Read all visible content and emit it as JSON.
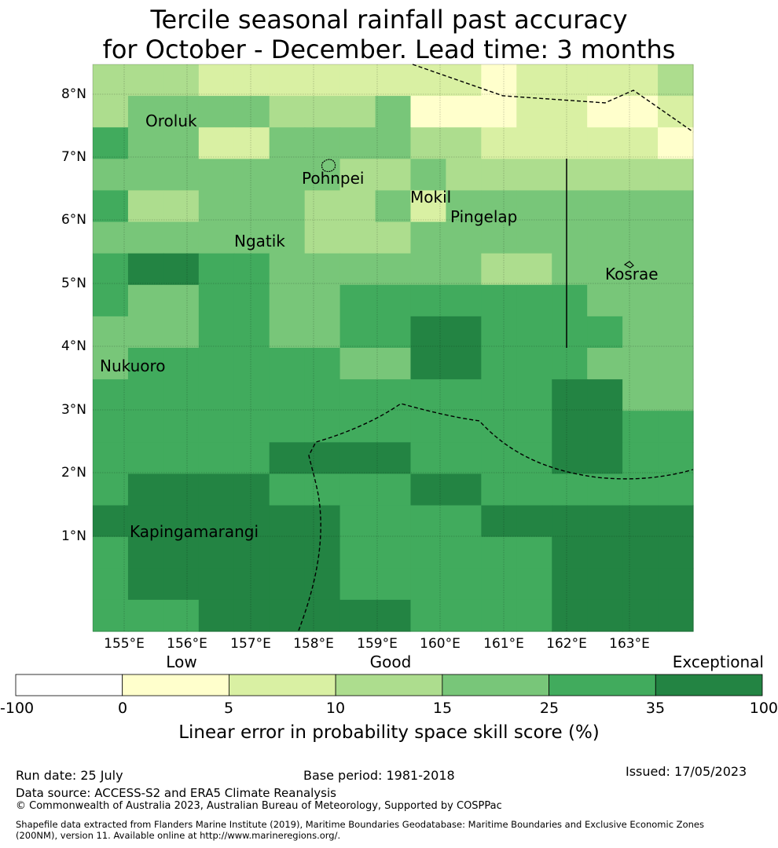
{
  "title": {
    "line1": "Tercile seasonal rainfall past accuracy",
    "line2": "for October - December. Lead time: 3 months"
  },
  "map": {
    "lat_labels": [
      "8°N",
      "7°N",
      "6°N",
      "5°N",
      "4°N",
      "3°N",
      "2°N",
      "1°N"
    ],
    "lon_labels": [
      "155°E",
      "156°E",
      "157°E",
      "158°E",
      "159°E",
      "160°E",
      "161°E",
      "162°E",
      "163°E"
    ],
    "places": [
      {
        "name": "Oroluk"
      },
      {
        "name": "Pohnpei"
      },
      {
        "name": "Mokil"
      },
      {
        "name": "Pingelap"
      },
      {
        "name": "Ngatik"
      },
      {
        "name": "Kosrae"
      },
      {
        "name": "Nukuoro"
      },
      {
        "name": "Kapingamarangi"
      }
    ],
    "grid_classes": [
      [
        3,
        3,
        3,
        2,
        2,
        2,
        2,
        2,
        2,
        2,
        2,
        1,
        2,
        2,
        2,
        2,
        3
      ],
      [
        3,
        4,
        4,
        4,
        4,
        3,
        3,
        3,
        4,
        1,
        1,
        1,
        2,
        2,
        1,
        1,
        2
      ],
      [
        5,
        4,
        4,
        2,
        2,
        4,
        4,
        4,
        4,
        3,
        3,
        2,
        2,
        2,
        2,
        2,
        1
      ],
      [
        4,
        4,
        4,
        4,
        4,
        4,
        4,
        3,
        3,
        4,
        3,
        3,
        3,
        3,
        3,
        3,
        3
      ],
      [
        5,
        3,
        3,
        4,
        4,
        4,
        3,
        3,
        4,
        2,
        4,
        4,
        4,
        4,
        4,
        4,
        4
      ],
      [
        4,
        4,
        4,
        4,
        4,
        4,
        3,
        3,
        3,
        4,
        4,
        4,
        4,
        4,
        4,
        4,
        4
      ],
      [
        5,
        6,
        6,
        5,
        5,
        4,
        4,
        4,
        4,
        4,
        4,
        3,
        3,
        4,
        4,
        4,
        4
      ],
      [
        5,
        4,
        4,
        5,
        5,
        4,
        4,
        5,
        5,
        5,
        5,
        5,
        5,
        5,
        4,
        4,
        4
      ],
      [
        4,
        4,
        4,
        5,
        5,
        4,
        4,
        5,
        5,
        6,
        6,
        5,
        5,
        5,
        5,
        4,
        4
      ],
      [
        4,
        5,
        5,
        5,
        5,
        5,
        5,
        4,
        4,
        6,
        6,
        5,
        5,
        5,
        4,
        4,
        4
      ],
      [
        5,
        5,
        5,
        5,
        5,
        5,
        5,
        5,
        5,
        5,
        5,
        5,
        5,
        6,
        6,
        4,
        4
      ],
      [
        5,
        5,
        5,
        5,
        5,
        5,
        5,
        5,
        5,
        5,
        5,
        5,
        5,
        6,
        6,
        5,
        5
      ],
      [
        5,
        5,
        5,
        5,
        5,
        6,
        6,
        6,
        6,
        5,
        5,
        5,
        5,
        6,
        6,
        5,
        5
      ],
      [
        5,
        6,
        6,
        6,
        6,
        5,
        5,
        5,
        5,
        6,
        6,
        5,
        5,
        5,
        5,
        5,
        5
      ],
      [
        6,
        6,
        6,
        6,
        6,
        6,
        6,
        5,
        5,
        5,
        5,
        6,
        6,
        6,
        6,
        6,
        6
      ],
      [
        5,
        6,
        6,
        6,
        6,
        6,
        6,
        5,
        5,
        5,
        5,
        5,
        5,
        6,
        6,
        6,
        6
      ],
      [
        5,
        6,
        6,
        6,
        6,
        6,
        6,
        5,
        5,
        5,
        5,
        5,
        5,
        6,
        6,
        6,
        6
      ],
      [
        5,
        5,
        5,
        6,
        6,
        6,
        6,
        6,
        6,
        5,
        5,
        5,
        5,
        6,
        6,
        6,
        6
      ]
    ]
  },
  "legend": {
    "category_labels": [
      "Low",
      "Good",
      "Exceptional"
    ],
    "ticks": [
      "-100",
      "0",
      "5",
      "10",
      "15",
      "25",
      "35",
      "100"
    ],
    "colors": [
      "#ffffff",
      "#ffffcc",
      "#d9f0a3",
      "#addd8e",
      "#78c679",
      "#41ab5d",
      "#238443"
    ],
    "title": "Linear error in probability space skill score (%)"
  },
  "footer": {
    "run_date": "Run date: 25 July",
    "base_period": "Base period: 1981-2018",
    "issued": "Issued: 17/05/2023",
    "data_source": "Data source: ACCESS-S2 and ERA5 Climate Reanalysis",
    "copyright": "© Commonwealth of Australia 2023, Australian Bureau of Meteorology, Supported by COSPPac",
    "shapefile_line1": "Shapefile data extracted from Flanders Marine Institute (2019), Maritime Boundaries Geodatabase: Maritime Boundaries and Exclusive Economic Zones",
    "shapefile_line2": "(200NM), version 11. Available online at http://www.marineregions.org/."
  }
}
